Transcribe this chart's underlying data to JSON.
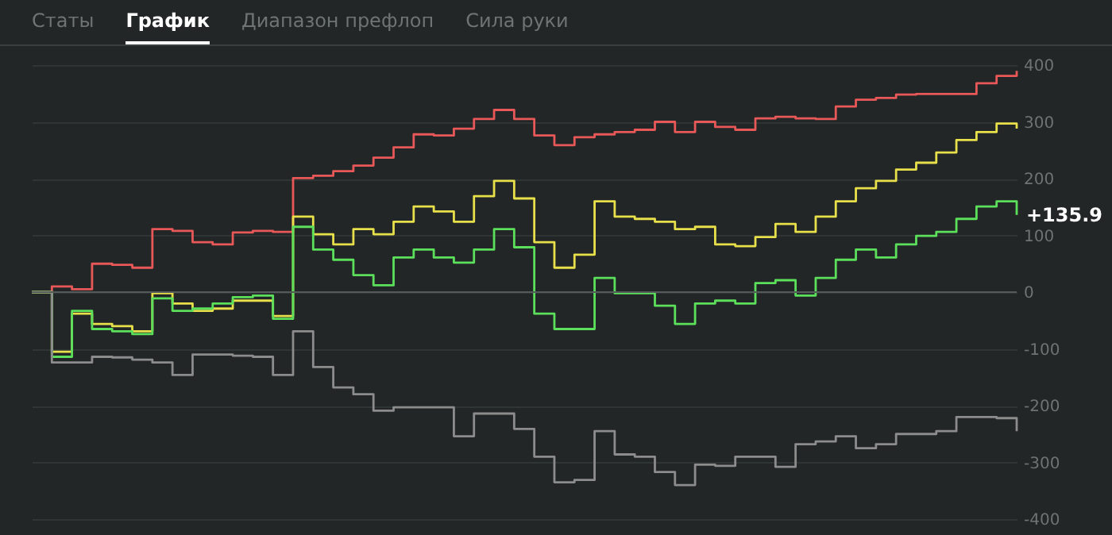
{
  "chart_data": {
    "type": "step",
    "categories": [
      null,
      null,
      null,
      null,
      null,
      null,
      null,
      null,
      null,
      null,
      null,
      null,
      null,
      null,
      null,
      null,
      null,
      null,
      null,
      null,
      null,
      null,
      null,
      null,
      null,
      null,
      null,
      null,
      null,
      null,
      null,
      null,
      null,
      null,
      null,
      null,
      null,
      null,
      null,
      null,
      null,
      null,
      null,
      null,
      null,
      null,
      null,
      null,
      null,
      null
    ],
    "series": [
      {
        "color": "#e85858",
        "values": [
          0,
          10,
          5,
          50,
          48,
          43,
          111,
          108,
          88,
          84,
          105,
          108,
          106,
          201,
          205,
          213,
          223,
          237,
          255,
          278,
          276,
          288,
          305,
          321,
          305,
          276,
          259,
          273,
          278,
          282,
          286,
          300,
          282,
          300,
          291,
          286,
          306,
          309,
          306,
          305,
          327,
          339,
          342,
          348,
          349,
          349,
          349,
          368,
          381,
          390
        ]
      },
      {
        "color": "#e8e04a",
        "values": [
          0,
          -105,
          -38,
          -56,
          -60,
          -69,
          -2,
          -20,
          -33,
          -29,
          -15,
          -15,
          -42,
          133,
          102,
          84,
          111,
          102,
          124,
          151,
          142,
          124,
          169,
          196,
          165,
          88,
          43,
          66,
          160,
          133,
          129,
          124,
          111,
          115,
          84,
          81,
          97,
          120,
          106,
          133,
          160,
          183,
          196,
          216,
          228,
          246,
          268,
          282,
          297,
          288
        ]
      },
      {
        "color": "#5ce05c",
        "values": [
          0,
          -114,
          -33,
          -65,
          -69,
          -74,
          -11,
          -33,
          -29,
          -20,
          -9,
          -6,
          -47,
          115,
          75,
          57,
          30,
          12,
          61,
          75,
          61,
          52,
          75,
          111,
          79,
          -38,
          -65,
          -65,
          25,
          -2,
          -2,
          -24,
          -56,
          -20,
          -15,
          -20,
          16,
          21,
          -6,
          25,
          57,
          75,
          61,
          84,
          99,
          106,
          129,
          151,
          160,
          136
        ]
      },
      {
        "color": "#8c8c8c",
        "values": [
          0,
          -124,
          -124,
          -114,
          -115,
          -119,
          -124,
          -146,
          -110,
          -110,
          -112,
          -114,
          -146,
          -69,
          -132,
          -168,
          -180,
          -209,
          -203,
          -203,
          -203,
          -254,
          -214,
          -214,
          -241,
          -290,
          -335,
          -331,
          -245,
          -286,
          -290,
          -317,
          -340,
          -304,
          -306,
          -290,
          -290,
          -308,
          -268,
          -263,
          -254,
          -275,
          -268,
          -250,
          -250,
          -245,
          -220,
          -220,
          -222,
          -245
        ]
      }
    ],
    "ylim": [
      -400,
      400
    ],
    "yticks": [
      -400,
      -300,
      -200,
      -100,
      0,
      100,
      200,
      300,
      400
    ],
    "grid": "y",
    "tick_labels": "y",
    "ref_lines": [
      {
        "axis": "y",
        "value": 0,
        "color": "#555a5a"
      }
    ],
    "annotations": [
      "Статы",
      "График",
      "Диапазон префлоп",
      "Сила руки",
      "+135.9"
    ]
  }
}
